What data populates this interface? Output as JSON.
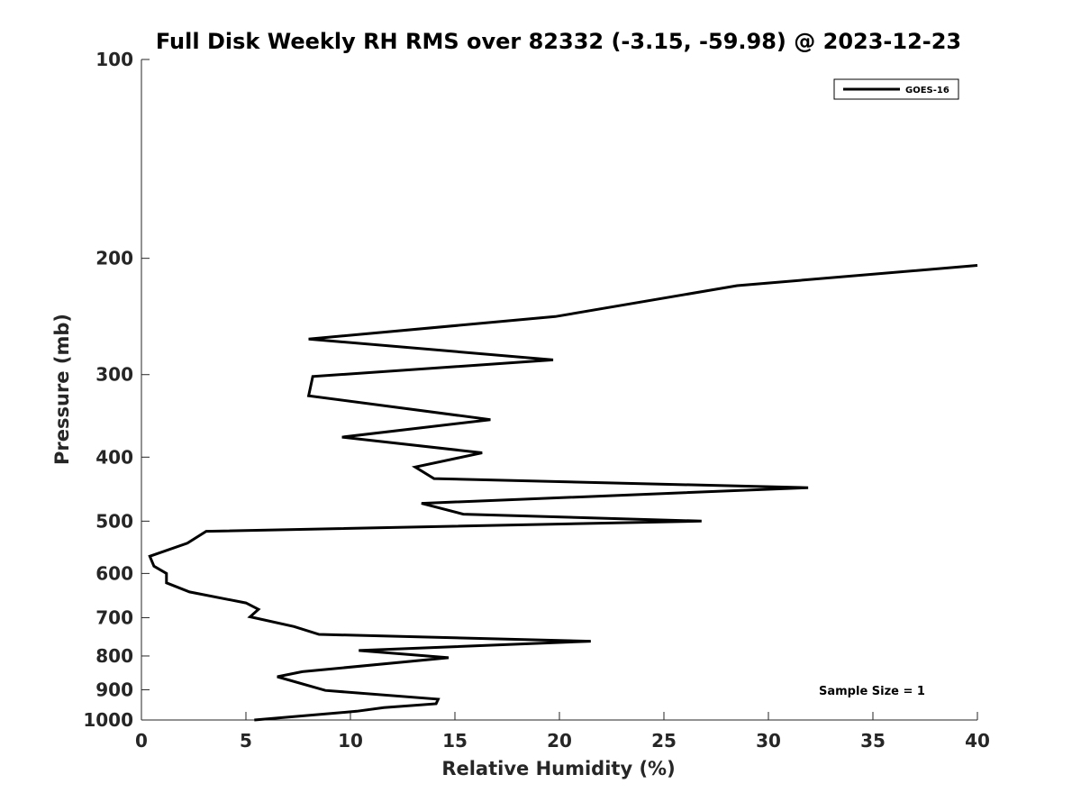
{
  "chart_data": {
    "type": "line",
    "title": "Full Disk Weekly RH RMS over 82332 (-3.15, -59.98) @ 2023-12-23",
    "xlabel": "Relative Humidity (%)",
    "ylabel": "Pressure (mb)",
    "xlim": [
      0,
      40
    ],
    "ylim": [
      100,
      1000
    ],
    "y_scale": "log",
    "y_reversed": true,
    "xticks": [
      0,
      5,
      10,
      15,
      20,
      25,
      30,
      35,
      40
    ],
    "yticks": [
      100,
      200,
      300,
      400,
      500,
      600,
      700,
      800,
      900,
      1000
    ],
    "grid": false,
    "legend_position": "top-right",
    "series": [
      {
        "name": "GOES-16",
        "color": "#000000",
        "points": [
          [
            40.0,
            205
          ],
          [
            28.5,
            220
          ],
          [
            19.8,
            245
          ],
          [
            8.0,
            265
          ],
          [
            19.7,
            285
          ],
          [
            8.2,
            302
          ],
          [
            8.0,
            323
          ],
          [
            16.7,
            351
          ],
          [
            9.6,
            373
          ],
          [
            16.3,
            394
          ],
          [
            13.1,
            414
          ],
          [
            14.0,
            431
          ],
          [
            31.9,
            445
          ],
          [
            13.4,
            470
          ],
          [
            15.4,
            488
          ],
          [
            26.8,
            500
          ],
          [
            3.1,
            518
          ],
          [
            2.2,
            540
          ],
          [
            0.4,
            565
          ],
          [
            0.6,
            585
          ],
          [
            1.2,
            600
          ],
          [
            1.2,
            620
          ],
          [
            2.3,
            640
          ],
          [
            5.0,
            665
          ],
          [
            5.6,
            680
          ],
          [
            5.2,
            698
          ],
          [
            7.3,
            722
          ],
          [
            8.5,
            742
          ],
          [
            21.5,
            760
          ],
          [
            10.4,
            785
          ],
          [
            14.7,
            805
          ],
          [
            7.7,
            845
          ],
          [
            6.5,
            860
          ],
          [
            8.8,
            902
          ],
          [
            14.2,
            930
          ],
          [
            14.1,
            945
          ],
          [
            11.6,
            958
          ],
          [
            10.3,
            970
          ],
          [
            5.4,
            1000
          ]
        ]
      }
    ],
    "annotations": [
      "Sample Size = 1"
    ]
  }
}
